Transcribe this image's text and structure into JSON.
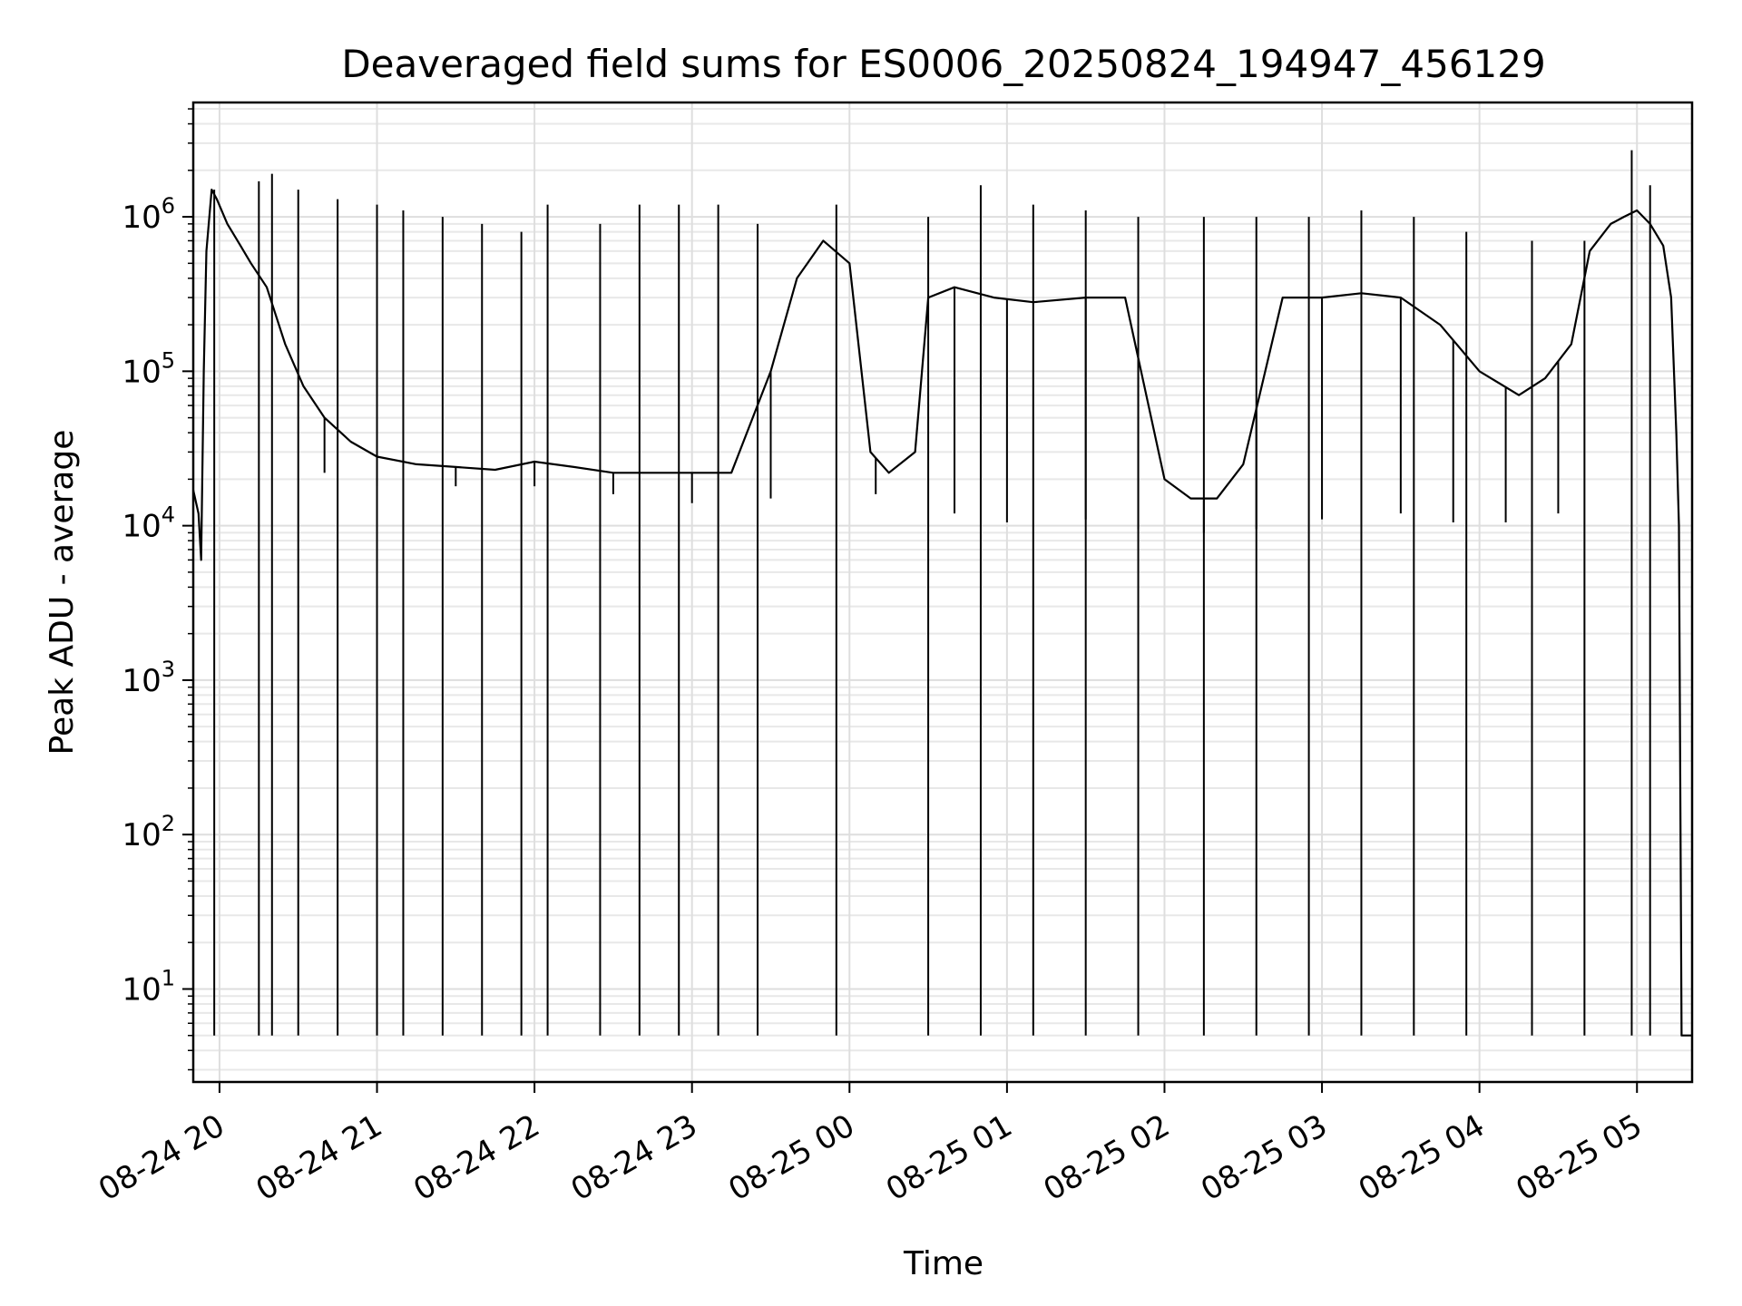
{
  "chart_data": {
    "type": "line",
    "title": "Deaveraged field sums for ES0006_20250824_194947_456129",
    "xlabel": "Time",
    "ylabel": "Peak ADU - average",
    "yscale": "log",
    "ylim": [
      2.5,
      5500000
    ],
    "xlim": [
      "2025-08-24 19:50",
      "2025-08-25 05:21"
    ],
    "grid": true,
    "x_ticks": [
      "08-24 20",
      "08-24 21",
      "08-24 22",
      "08-24 23",
      "08-25 00",
      "08-25 01",
      "08-25 02",
      "08-25 03",
      "08-25 04",
      "08-25 05"
    ],
    "y_ticks": [
      {
        "base": "10",
        "exp": "1",
        "value": 10
      },
      {
        "base": "10",
        "exp": "2",
        "value": 100
      },
      {
        "base": "10",
        "exp": "3",
        "value": 1000
      },
      {
        "base": "10",
        "exp": "4",
        "value": 10000
      },
      {
        "base": "10",
        "exp": "5",
        "value": 100000
      },
      {
        "base": "10",
        "exp": "6",
        "value": 1000000
      }
    ],
    "series": [
      {
        "color": "#000000",
        "x": [
          "2025-08-24 19:50",
          "2025-08-24 19:52",
          "2025-08-24 19:53",
          "2025-08-24 19:54",
          "2025-08-24 19:55",
          "2025-08-24 19:57",
          "2025-08-24 19:59",
          "2025-08-24 20:03",
          "2025-08-24 20:08",
          "2025-08-24 20:12",
          "2025-08-24 20:18",
          "2025-08-24 20:25",
          "2025-08-24 20:32",
          "2025-08-24 20:40",
          "2025-08-24 20:50",
          "2025-08-24 21:00",
          "2025-08-24 21:15",
          "2025-08-24 21:30",
          "2025-08-24 21:45",
          "2025-08-24 22:00",
          "2025-08-24 22:15",
          "2025-08-24 22:30",
          "2025-08-24 22:45",
          "2025-08-24 23:00",
          "2025-08-24 23:15",
          "2025-08-24 23:30",
          "2025-08-24 23:40",
          "2025-08-24 23:50",
          "2025-08-25 00:00",
          "2025-08-25 00:08",
          "2025-08-25 00:15",
          "2025-08-25 00:25",
          "2025-08-25 00:30",
          "2025-08-25 00:40",
          "2025-08-25 00:55",
          "2025-08-25 01:10",
          "2025-08-25 01:30",
          "2025-08-25 01:45",
          "2025-08-25 02:00",
          "2025-08-25 02:10",
          "2025-08-25 02:20",
          "2025-08-25 02:30",
          "2025-08-25 02:45",
          "2025-08-25 03:00",
          "2025-08-25 03:15",
          "2025-08-25 03:30",
          "2025-08-25 03:45",
          "2025-08-25 04:00",
          "2025-08-25 04:15",
          "2025-08-25 04:25",
          "2025-08-25 04:35",
          "2025-08-25 04:42",
          "2025-08-25 04:50",
          "2025-08-25 04:55",
          "2025-08-25 05:00",
          "2025-08-25 05:05",
          "2025-08-25 05:10",
          "2025-08-25 05:13",
          "2025-08-25 05:15",
          "2025-08-25 05:16",
          "2025-08-25 05:17",
          "2025-08-25 05:21"
        ],
        "y": [
          17000,
          12000,
          6000,
          100000,
          600000,
          1500000,
          1300000,
          900000,
          650000,
          500000,
          350000,
          150000,
          80000,
          50000,
          35000,
          28000,
          25000,
          24000,
          23000,
          26000,
          24000,
          22000,
          22000,
          22000,
          22000,
          100000,
          400000,
          700000,
          500000,
          30000,
          22000,
          30000,
          300000,
          350000,
          300000,
          280000,
          300000,
          300000,
          20000,
          15000,
          15000,
          25000,
          300000,
          300000,
          320000,
          300000,
          200000,
          100000,
          70000,
          90000,
          150000,
          600000,
          900000,
          1000000,
          1100000,
          900000,
          650000,
          300000,
          40000,
          10000,
          5,
          5
        ],
        "spikes": [
          {
            "x": "2025-08-24 19:58",
            "y": 1500000
          },
          {
            "x": "2025-08-24 20:15",
            "y": 1700000
          },
          {
            "x": "2025-08-24 20:20",
            "y": 1900000
          },
          {
            "x": "2025-08-24 20:30",
            "y": 1500000
          },
          {
            "x": "2025-08-24 20:45",
            "y": 1300000
          },
          {
            "x": "2025-08-24 21:00",
            "y": 1200000
          },
          {
            "x": "2025-08-24 21:10",
            "y": 1100000
          },
          {
            "x": "2025-08-24 21:25",
            "y": 1000000
          },
          {
            "x": "2025-08-24 21:40",
            "y": 900000
          },
          {
            "x": "2025-08-24 21:55",
            "y": 800000
          },
          {
            "x": "2025-08-24 22:05",
            "y": 1200000
          },
          {
            "x": "2025-08-24 22:25",
            "y": 900000
          },
          {
            "x": "2025-08-24 22:40",
            "y": 1200000
          },
          {
            "x": "2025-08-24 22:55",
            "y": 1200000
          },
          {
            "x": "2025-08-24 23:10",
            "y": 1200000
          },
          {
            "x": "2025-08-24 23:25",
            "y": 900000
          },
          {
            "x": "2025-08-24 23:55",
            "y": 1200000
          },
          {
            "x": "2025-08-25 00:30",
            "y": 1000000
          },
          {
            "x": "2025-08-25 00:50",
            "y": 1600000
          },
          {
            "x": "2025-08-25 01:10",
            "y": 1200000
          },
          {
            "x": "2025-08-25 01:30",
            "y": 1100000
          },
          {
            "x": "2025-08-25 01:50",
            "y": 1000000
          },
          {
            "x": "2025-08-25 02:15",
            "y": 1000000
          },
          {
            "x": "2025-08-25 02:35",
            "y": 1000000
          },
          {
            "x": "2025-08-25 02:55",
            "y": 1000000
          },
          {
            "x": "2025-08-25 03:15",
            "y": 1100000
          },
          {
            "x": "2025-08-25 03:35",
            "y": 1000000
          },
          {
            "x": "2025-08-25 03:55",
            "y": 800000
          },
          {
            "x": "2025-08-25 04:20",
            "y": 700000
          },
          {
            "x": "2025-08-25 04:40",
            "y": 700000
          },
          {
            "x": "2025-08-25 04:58",
            "y": 2700000
          },
          {
            "x": "2025-08-25 05:05",
            "y": 1600000
          }
        ],
        "dips": [
          {
            "x": "2025-08-24 20:40",
            "y": 22000
          },
          {
            "x": "2025-08-24 21:00",
            "y": 18000
          },
          {
            "x": "2025-08-24 21:30",
            "y": 18000
          },
          {
            "x": "2025-08-24 22:00",
            "y": 18000
          },
          {
            "x": "2025-08-24 22:30",
            "y": 16000
          },
          {
            "x": "2025-08-24 23:00",
            "y": 14000
          },
          {
            "x": "2025-08-24 23:30",
            "y": 15000
          },
          {
            "x": "2025-08-25 00:10",
            "y": 16000
          },
          {
            "x": "2025-08-25 00:40",
            "y": 12000
          },
          {
            "x": "2025-08-25 01:00",
            "y": 10500
          },
          {
            "x": "2025-08-25 01:30",
            "y": 11000
          },
          {
            "x": "2025-08-25 01:50",
            "y": 9500
          },
          {
            "x": "2025-08-25 02:15",
            "y": 9000
          },
          {
            "x": "2025-08-25 02:35",
            "y": 9500
          },
          {
            "x": "2025-08-25 03:00",
            "y": 11000
          },
          {
            "x": "2025-08-25 03:30",
            "y": 12000
          },
          {
            "x": "2025-08-25 03:50",
            "y": 10500
          },
          {
            "x": "2025-08-25 04:10",
            "y": 10500
          },
          {
            "x": "2025-08-25 04:30",
            "y": 12000
          }
        ]
      }
    ]
  }
}
